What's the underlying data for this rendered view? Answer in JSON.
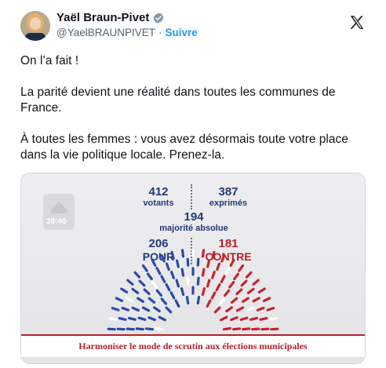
{
  "header": {
    "name": "Yaël Braun-Pivet",
    "handle": "@YaelBRAUNPIVET",
    "separator": "·",
    "follow_label": "Suivre",
    "verified_color": "#829aab"
  },
  "tweet": {
    "paragraphs": [
      "On l’a fait !",
      "La parité devient une réalité dans toutes les communes de France.",
      "À toutes les femmes : vous avez désormais toute votre place dans la vie politique locale. Prenez-la."
    ]
  },
  "media": {
    "tv_time": "20:40",
    "votants": {
      "value": "412",
      "label": "votants"
    },
    "exprimes": {
      "value": "387",
      "label": "exprimés"
    },
    "majorite": {
      "value": "194",
      "label": "majorité absolue"
    },
    "pour": {
      "value": "206",
      "label": "POUR"
    },
    "contre": {
      "value": "181",
      "label": "CONTRE"
    },
    "caption": "Harmoniser le mode de scrutin aux élections municipales",
    "colors": {
      "pour": "#2a4aa8",
      "contre": "#c42430",
      "blank": "#ffffff"
    }
  }
}
